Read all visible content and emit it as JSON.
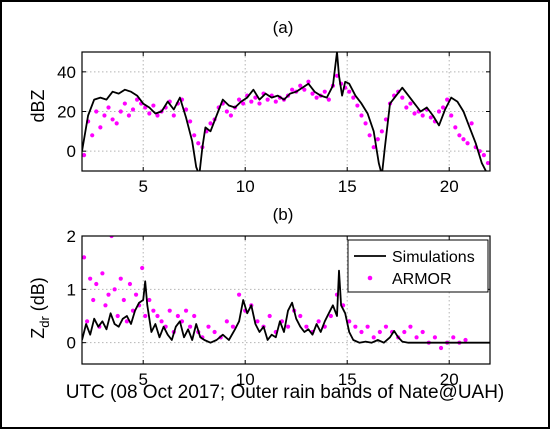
{
  "figure": {
    "xlabel": "UTC (08 Oct 2017; Outer rain bands of Nate@UAH)"
  },
  "chart_data": [
    {
      "type": "line",
      "title": "(a)",
      "ylabel": "dBZ",
      "xlabel": "",
      "xlim": [
        2,
        22
      ],
      "ylim": [
        -10,
        50
      ],
      "x_ticks": [
        5,
        10,
        15,
        20
      ],
      "y_ticks": [
        0,
        20,
        40
      ],
      "grid": true,
      "legend": null,
      "series": [
        {
          "name": "Simulations",
          "style": "line",
          "color": "#000000",
          "x": [
            2.0,
            2.3,
            2.6,
            2.9,
            3.2,
            3.5,
            3.8,
            4.1,
            4.4,
            4.7,
            5.0,
            5.3,
            5.6,
            5.9,
            6.2,
            6.5,
            6.8,
            7.1,
            7.4,
            7.6,
            7.75,
            7.9,
            8.05,
            8.3,
            8.6,
            8.9,
            9.2,
            9.5,
            9.8,
            10.1,
            10.4,
            10.7,
            11.0,
            11.3,
            11.6,
            11.9,
            12.2,
            12.5,
            12.8,
            13.1,
            13.4,
            13.7,
            14.0,
            14.3,
            14.5,
            14.6,
            14.75,
            14.9,
            15.1,
            15.4,
            15.7,
            16.0,
            16.3,
            16.55,
            16.7,
            16.85,
            17.1,
            17.4,
            17.7,
            18.0,
            18.3,
            18.6,
            18.9,
            19.2,
            19.5,
            19.8,
            20.1,
            20.4,
            20.7,
            21.0,
            21.3,
            21.6,
            21.9,
            22.0
          ],
          "values": [
            0,
            18,
            26,
            27,
            26,
            30,
            29,
            31,
            30,
            28,
            24,
            22,
            19,
            20,
            25,
            21,
            27,
            17,
            5,
            -8,
            -12,
            2,
            12,
            10,
            18,
            26,
            23,
            22,
            25,
            27,
            31,
            26,
            29,
            27,
            28,
            26,
            29,
            30,
            32,
            34,
            30,
            28,
            27,
            33,
            50,
            38,
            28,
            35,
            34,
            28,
            24,
            19,
            10,
            -6,
            -12,
            2,
            24,
            28,
            32,
            28,
            24,
            20,
            22,
            18,
            13,
            21,
            27,
            25,
            20,
            12,
            4,
            -6,
            -12,
            -12
          ]
        },
        {
          "name": "ARMOR",
          "style": "points",
          "color": "#ff00ff",
          "x": [
            2.1,
            2.3,
            2.5,
            2.7,
            2.9,
            3.1,
            3.3,
            3.5,
            3.7,
            3.9,
            4.1,
            4.3,
            4.5,
            4.7,
            4.9,
            5.1,
            5.3,
            5.5,
            5.7,
            5.9,
            6.1,
            6.3,
            6.5,
            6.7,
            6.9,
            7.1,
            7.3,
            7.5,
            7.7,
            7.9,
            8.1,
            8.3,
            8.5,
            8.7,
            8.9,
            9.1,
            9.3,
            9.5,
            9.7,
            9.9,
            10.1,
            10.3,
            10.5,
            10.7,
            10.9,
            11.1,
            11.3,
            11.5,
            11.7,
            11.9,
            12.1,
            12.3,
            12.5,
            12.7,
            12.9,
            13.1,
            13.3,
            13.5,
            13.7,
            13.9,
            14.1,
            14.3,
            14.5,
            14.7,
            14.9,
            15.1,
            15.3,
            15.5,
            15.7,
            15.9,
            16.1,
            16.3,
            16.5,
            16.7,
            16.9,
            17.1,
            17.3,
            17.5,
            17.7,
            17.9,
            18.1,
            18.3,
            18.5,
            18.7,
            18.9,
            19.1,
            19.3,
            19.5,
            19.7,
            19.9,
            20.1,
            20.3,
            20.5,
            20.7,
            20.9,
            21.1,
            21.3,
            21.5,
            21.7,
            21.9
          ],
          "values": [
            -2,
            15,
            8,
            20,
            12,
            18,
            22,
            16,
            14,
            20,
            24,
            18,
            21,
            26,
            24,
            22,
            19,
            23,
            18,
            20,
            22,
            25,
            18,
            24,
            26,
            21,
            15,
            8,
            4,
            2,
            10,
            14,
            16,
            22,
            24,
            20,
            18,
            22,
            26,
            24,
            28,
            25,
            27,
            24,
            29,
            26,
            28,
            25,
            27,
            26,
            28,
            31,
            30,
            33,
            31,
            35,
            29,
            27,
            28,
            30,
            26,
            33,
            38,
            34,
            32,
            30,
            27,
            23,
            18,
            14,
            8,
            2,
            6,
            10,
            16,
            24,
            28,
            30,
            27,
            22,
            24,
            19,
            20,
            18,
            21,
            17,
            15,
            20,
            22,
            26,
            18,
            12,
            8,
            6,
            4,
            14,
            2,
            0,
            -2,
            -6
          ]
        }
      ]
    },
    {
      "type": "line",
      "title": "(b)",
      "ylabel": "Z_dr (dB)",
      "xlabel": "UTC (08 Oct 2017; Outer rain bands of Nate@UAH)",
      "xlim": [
        2,
        22
      ],
      "ylim": [
        -0.4,
        2
      ],
      "x_ticks": [
        5,
        10,
        15,
        20
      ],
      "y_ticks": [
        0,
        1,
        2
      ],
      "grid": true,
      "legend": "top-right",
      "series": [
        {
          "name": "Simulations",
          "style": "line",
          "color": "#000000",
          "x": [
            2.0,
            2.2,
            2.4,
            2.6,
            2.8,
            3.0,
            3.2,
            3.4,
            3.6,
            3.8,
            4.0,
            4.2,
            4.4,
            4.6,
            4.8,
            5.0,
            5.1,
            5.2,
            5.4,
            5.6,
            5.8,
            6.0,
            6.2,
            6.4,
            6.6,
            6.8,
            7.0,
            7.2,
            7.4,
            7.6,
            7.8,
            8.0,
            8.3,
            8.6,
            8.9,
            9.2,
            9.5,
            9.7,
            9.9,
            10.1,
            10.3,
            10.5,
            10.7,
            10.9,
            11.1,
            11.3,
            11.5,
            11.7,
            11.9,
            12.1,
            12.3,
            12.5,
            12.7,
            12.9,
            13.1,
            13.3,
            13.5,
            13.7,
            13.9,
            14.1,
            14.3,
            14.5,
            14.6,
            14.7,
            14.9,
            15.1,
            15.3,
            15.6,
            15.9,
            16.2,
            16.5,
            16.8,
            17.1,
            17.3,
            17.5,
            17.7,
            18.0,
            18.5,
            19.0,
            19.5,
            20.0,
            20.5,
            21.0,
            21.5,
            22.0
          ],
          "values": [
            0.05,
            0.35,
            0.15,
            0.45,
            0.3,
            0.4,
            0.25,
            0.55,
            0.35,
            0.3,
            0.45,
            0.5,
            0.35,
            0.6,
            0.75,
            0.8,
            1.15,
            0.7,
            0.2,
            0.35,
            0.1,
            0.3,
            0.15,
            0.05,
            0.3,
            0.4,
            0.1,
            0.25,
            0.05,
            0.35,
            0.1,
            0.05,
            0.0,
            0.05,
            0.15,
            0.05,
            0.25,
            0.4,
            0.8,
            0.55,
            0.7,
            0.35,
            0.2,
            0.3,
            0.05,
            0.15,
            0.1,
            0.4,
            0.2,
            0.6,
            0.75,
            0.45,
            0.3,
            0.2,
            0.25,
            0.15,
            0.35,
            0.2,
            0.4,
            0.55,
            0.7,
            0.5,
            1.35,
            0.7,
            0.55,
            0.2,
            0.05,
            0.0,
            0.02,
            0.0,
            0.05,
            0.0,
            0.1,
            0.22,
            0.1,
            0.02,
            0.0,
            0.0,
            0.0,
            0.0,
            0.0,
            0.0,
            0.0,
            0.0,
            0.0
          ]
        },
        {
          "name": "ARMOR",
          "style": "points",
          "color": "#ff00ff",
          "x": [
            2.1,
            2.25,
            2.4,
            2.55,
            2.7,
            2.85,
            3.0,
            3.15,
            3.3,
            3.45,
            3.6,
            3.75,
            3.9,
            4.05,
            4.2,
            4.35,
            4.5,
            4.65,
            4.8,
            4.95,
            5.1,
            5.3,
            5.5,
            5.7,
            5.9,
            6.1,
            6.3,
            6.5,
            6.7,
            6.9,
            7.1,
            7.3,
            7.5,
            7.7,
            7.9,
            8.2,
            8.5,
            8.8,
            9.1,
            9.4,
            9.7,
            10.0,
            10.3,
            10.6,
            10.9,
            11.2,
            11.5,
            11.8,
            12.1,
            12.4,
            12.7,
            13.0,
            13.3,
            13.6,
            13.9,
            14.2,
            14.5,
            14.8,
            15.1,
            15.4,
            15.7,
            16.0,
            16.3,
            16.6,
            16.9,
            17.2,
            17.5,
            17.8,
            18.1,
            18.4,
            18.7,
            19.0,
            19.3,
            19.6,
            19.9,
            20.2,
            20.5,
            20.8
          ],
          "values": [
            1.6,
            0.4,
            1.2,
            0.8,
            1.1,
            0.3,
            1.3,
            0.7,
            0.9,
            2.0,
            1.0,
            0.5,
            1.2,
            0.8,
            0.4,
            1.1,
            0.6,
            0.9,
            0.7,
            1.4,
            0.5,
            0.8,
            0.6,
            0.5,
            0.4,
            0.3,
            0.6,
            0.2,
            0.5,
            0.4,
            0.6,
            0.3,
            0.5,
            0.2,
            0.1,
            0.3,
            0.2,
            0.1,
            0.4,
            0.3,
            0.9,
            0.6,
            0.7,
            0.4,
            0.3,
            0.5,
            0.2,
            0.4,
            0.3,
            0.6,
            0.5,
            0.3,
            0.2,
            0.4,
            0.3,
            0.5,
            0.9,
            0.7,
            0.4,
            0.3,
            0.2,
            0.3,
            0.1,
            0.2,
            0.3,
            0.2,
            0.1,
            0.2,
            0.3,
            0.1,
            0.2,
            0.0,
            0.1,
            -0.1,
            0.0,
            0.1,
            0.0,
            0.05
          ]
        }
      ]
    }
  ]
}
